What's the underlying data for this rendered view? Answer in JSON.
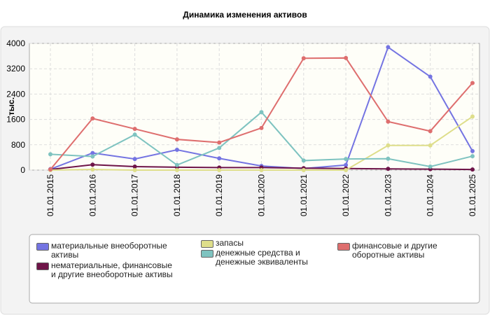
{
  "chart_data": {
    "type": "line",
    "title": "Динамика изменения активов",
    "y_label": "тыс.",
    "x": [
      "01.01.2015",
      "01.01.2016",
      "01.01.2017",
      "01.01.2018",
      "01.01.2019",
      "01.01.2020",
      "01.01.2021",
      "01.01.2022",
      "01.01.2023",
      "01.01.2024",
      "01.01.2025"
    ],
    "ylim": [
      0,
      4000
    ],
    "yticks": [
      0,
      800,
      1600,
      2400,
      3200,
      4000
    ],
    "grid": true,
    "series": [
      {
        "name": "материальные внеоборотные активы",
        "color": "#7474e2",
        "values": [
          30,
          540,
          350,
          640,
          370,
          130,
          50,
          160,
          3880,
          2950,
          600
        ]
      },
      {
        "name": "нематериальные, финансовые и другие внеоборотные активы",
        "color": "#6e1448",
        "values": [
          20,
          170,
          110,
          90,
          80,
          80,
          60,
          50,
          40,
          30,
          20
        ]
      },
      {
        "name": "запасы",
        "color": "#dede8a",
        "values": [
          0,
          20,
          0,
          0,
          0,
          0,
          0,
          0,
          780,
          780,
          1690
        ]
      },
      {
        "name": "денежные средства и денежные эквиваленты",
        "color": "#7ec3c0",
        "values": [
          500,
          430,
          1120,
          160,
          700,
          1830,
          300,
          350,
          360,
          110,
          440
        ]
      },
      {
        "name": "финансовые и другие оборотные активы",
        "color": "#de6e6e",
        "values": [
          20,
          1630,
          1300,
          970,
          870,
          1330,
          3530,
          3540,
          1530,
          1230,
          2750
        ]
      }
    ]
  }
}
